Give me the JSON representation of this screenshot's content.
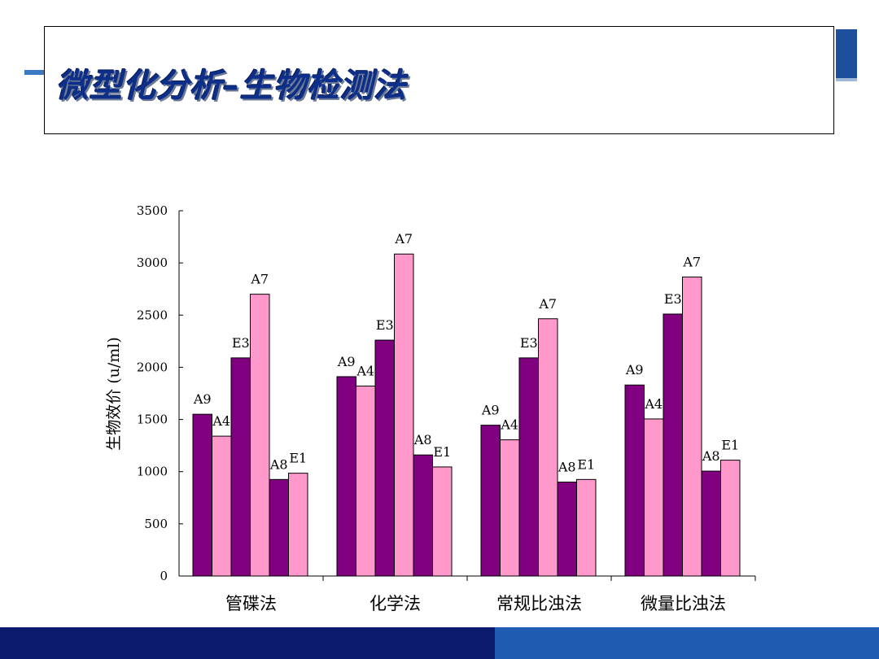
{
  "slide": {
    "title": "微型化分析–生物检测法"
  },
  "colors": {
    "dark_bar": "#800080",
    "light_bar": "#ff99cc",
    "title_text": "#0d2f8a",
    "footer_dark": "#0c1b6e",
    "footer_light": "#1f5bb0"
  },
  "chart_data": {
    "type": "bar",
    "title": "",
    "xlabel": "",
    "ylabel": "生物效价 (u/ml)",
    "ylim": [
      0,
      3500
    ],
    "yticks": [
      0,
      500,
      1000,
      1500,
      2000,
      2500,
      3000,
      3500
    ],
    "grid": false,
    "legend": "none",
    "categories": [
      "管碟法",
      "化学法",
      "常规比浊法",
      "微量比浊法"
    ],
    "series": [
      {
        "name": "A9",
        "values": [
          1550,
          1910,
          1445,
          1830
        ]
      },
      {
        "name": "A4",
        "values": [
          1340,
          1820,
          1305,
          1505
        ]
      },
      {
        "name": "E3",
        "values": [
          2090,
          2260,
          2090,
          2510
        ]
      },
      {
        "name": "A7",
        "values": [
          2700,
          3085,
          2465,
          2865
        ]
      },
      {
        "name": "A8",
        "values": [
          925,
          1160,
          900,
          1005
        ]
      },
      {
        "name": "E1",
        "values": [
          985,
          1045,
          925,
          1110
        ]
      }
    ]
  }
}
